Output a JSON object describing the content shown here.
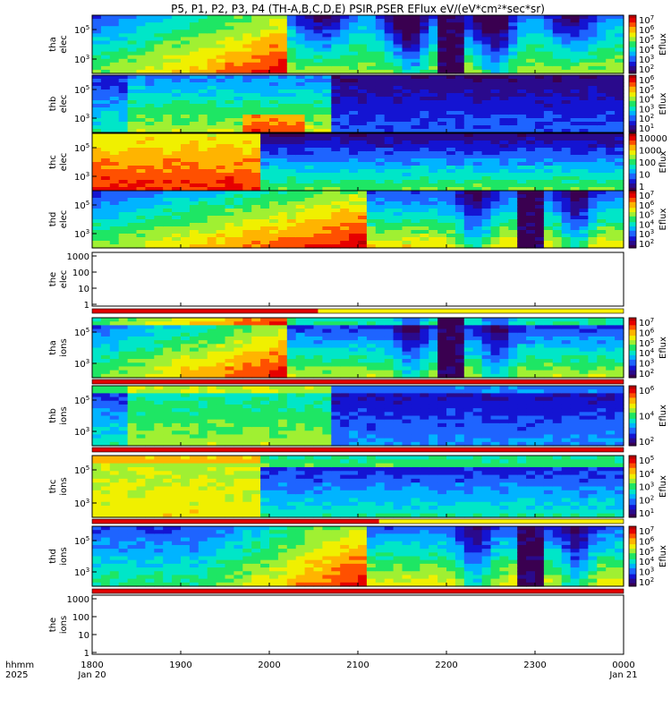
{
  "chart_data": {
    "type": "heatmap",
    "title": "P5, P1, P2, P3, P4 (TH-A,B,C,D,E) PSIR,PSER EFlux eV/(eV*cm²*sec*sr)",
    "time_axis": {
      "label_row1": "hhmm",
      "label_row2": "2025",
      "ticks": [
        {
          "t": "1800",
          "d": "Jan 20"
        },
        {
          "t": "1900",
          "d": ""
        },
        {
          "t": "2000",
          "d": ""
        },
        {
          "t": "2100",
          "d": ""
        },
        {
          "t": "2200",
          "d": ""
        },
        {
          "t": "2300",
          "d": ""
        },
        {
          "t": "0000",
          "d": "Jan 21"
        }
      ],
      "range_hours": [
        18,
        24
      ]
    },
    "colorbar_label": "Eflux",
    "panels": [
      {
        "probe": "tha",
        "species": "elec",
        "ylabel1": "tha",
        "ylabel2": "elec",
        "y_ticks": [
          {
            "text": "10",
            "exp": "5"
          },
          {
            "text": "10",
            "exp": "3"
          }
        ],
        "cbar_ticks": [
          {
            "text": "10",
            "exp": "7"
          },
          {
            "text": "10",
            "exp": "6"
          },
          {
            "text": "10",
            "exp": "5"
          },
          {
            "text": "10",
            "exp": "4"
          },
          {
            "text": "10",
            "exp": "3"
          },
          {
            "text": "10",
            "exp": "2"
          }
        ]
      },
      {
        "probe": "thb",
        "species": "elec",
        "ylabel1": "thb",
        "ylabel2": "elec",
        "y_ticks": [
          {
            "text": "10",
            "exp": "5"
          },
          {
            "text": "10",
            "exp": "3"
          }
        ],
        "cbar_ticks": [
          {
            "text": "10",
            "exp": "6"
          },
          {
            "text": "10",
            "exp": "5"
          },
          {
            "text": "10",
            "exp": "4"
          },
          {
            "text": "10",
            "exp": "3"
          },
          {
            "text": "10",
            "exp": "2"
          },
          {
            "text": "10",
            "exp": "1"
          }
        ]
      },
      {
        "probe": "thc",
        "species": "elec",
        "ylabel1": "thc",
        "ylabel2": "elec",
        "y_ticks": [
          {
            "text": "10",
            "exp": "5"
          },
          {
            "text": "10",
            "exp": "3"
          }
        ],
        "cbar_ticks": [
          {
            "text": "10000",
            "exp": ""
          },
          {
            "text": "1000",
            "exp": ""
          },
          {
            "text": "100",
            "exp": ""
          },
          {
            "text": "10",
            "exp": ""
          },
          {
            "text": "1",
            "exp": ""
          }
        ]
      },
      {
        "probe": "thd",
        "species": "elec",
        "ylabel1": "thd",
        "ylabel2": "elec",
        "y_ticks": [
          {
            "text": "10",
            "exp": "5"
          },
          {
            "text": "10",
            "exp": "3"
          }
        ],
        "cbar_ticks": [
          {
            "text": "10",
            "exp": "7"
          },
          {
            "text": "10",
            "exp": "6"
          },
          {
            "text": "10",
            "exp": "5"
          },
          {
            "text": "10",
            "exp": "4"
          },
          {
            "text": "10",
            "exp": "3"
          },
          {
            "text": "10",
            "exp": "2"
          }
        ]
      },
      {
        "probe": "the",
        "species": "elec",
        "ylabel1": "the",
        "ylabel2": "elec",
        "empty": true,
        "y_ticks": [
          {
            "text": "1000",
            "exp": ""
          },
          {
            "text": "100",
            "exp": ""
          },
          {
            "text": "10",
            "exp": ""
          },
          {
            "text": "1",
            "exp": ""
          }
        ],
        "cbar_ticks": []
      },
      {
        "probe": "tha",
        "species": "ions",
        "ylabel1": "tha",
        "ylabel2": "ions",
        "y_ticks": [
          {
            "text": "10",
            "exp": "5"
          },
          {
            "text": "10",
            "exp": "3"
          }
        ],
        "cbar_ticks": [
          {
            "text": "10",
            "exp": "7"
          },
          {
            "text": "10",
            "exp": "6"
          },
          {
            "text": "10",
            "exp": "5"
          },
          {
            "text": "10",
            "exp": "4"
          },
          {
            "text": "10",
            "exp": "3"
          },
          {
            "text": "10",
            "exp": "2"
          }
        ]
      },
      {
        "probe": "thb",
        "species": "ions",
        "ylabel1": "thb",
        "ylabel2": "ions",
        "y_ticks": [
          {
            "text": "10",
            "exp": "5"
          },
          {
            "text": "10",
            "exp": "3"
          }
        ],
        "cbar_ticks": [
          {
            "text": "10",
            "exp": "6"
          },
          {
            "text": "10",
            "exp": "4"
          },
          {
            "text": "10",
            "exp": "2"
          }
        ]
      },
      {
        "probe": "thc",
        "species": "ions",
        "ylabel1": "thc",
        "ylabel2": "ions",
        "y_ticks": [
          {
            "text": "10",
            "exp": "5"
          },
          {
            "text": "10",
            "exp": "3"
          }
        ],
        "cbar_ticks": [
          {
            "text": "10",
            "exp": "5"
          },
          {
            "text": "10",
            "exp": "4"
          },
          {
            "text": "10",
            "exp": "3"
          },
          {
            "text": "10",
            "exp": "2"
          },
          {
            "text": "10",
            "exp": "1"
          }
        ]
      },
      {
        "probe": "thd",
        "species": "ions",
        "ylabel1": "thd",
        "ylabel2": "ions",
        "y_ticks": [
          {
            "text": "10",
            "exp": "5"
          },
          {
            "text": "10",
            "exp": "3"
          }
        ],
        "cbar_ticks": [
          {
            "text": "10",
            "exp": "7"
          },
          {
            "text": "10",
            "exp": "6"
          },
          {
            "text": "10",
            "exp": "5"
          },
          {
            "text": "10",
            "exp": "4"
          },
          {
            "text": "10",
            "exp": "3"
          },
          {
            "text": "10",
            "exp": "2"
          }
        ]
      },
      {
        "probe": "the",
        "species": "ions",
        "ylabel1": "the",
        "ylabel2": "ions",
        "empty": true,
        "y_ticks": [
          {
            "text": "1000",
            "exp": ""
          },
          {
            "text": "100",
            "exp": ""
          },
          {
            "text": "10",
            "exp": ""
          },
          {
            "text": "1",
            "exp": ""
          }
        ],
        "cbar_ticks": []
      }
    ],
    "colormap": [
      "#3a0050",
      "#2a0a8c",
      "#1414d2",
      "#1e64ff",
      "#00b4ff",
      "#00e6c8",
      "#1ee664",
      "#a0f032",
      "#f0f000",
      "#ffb400",
      "#ff5000",
      "#e60000",
      "#b40000"
    ]
  }
}
